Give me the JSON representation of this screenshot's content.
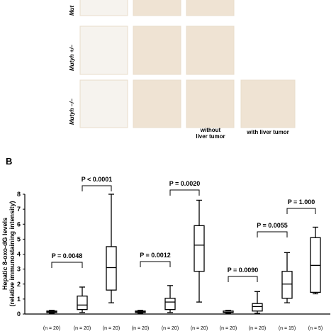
{
  "panel_a": {
    "row_labels": [
      "Mut",
      "Mutyh +/–",
      "Mutyh –/–"
    ],
    "column_labels": [
      "without",
      "liver tumor",
      "with liver tumor"
    ]
  },
  "chart_data": {
    "type": "box",
    "panel_label": "B",
    "ylabel": [
      "Hepatic 8-oxo-dG levels",
      "(relative immunostaining intensity)"
    ],
    "categories": [
      "(n = 20)",
      "(n = 20)",
      "(n = 20)",
      "(n = 20)",
      "(n = 20)",
      "(n = 20)",
      "(n = 20)",
      "(n = 20)",
      "(n = 15)",
      "(n = 5)"
    ],
    "boxes": [
      {
        "min": 0.05,
        "q1": 0.1,
        "median": 0.15,
        "q3": 0.2,
        "max": 0.25
      },
      {
        "min": 0.1,
        "q1": 0.3,
        "median": 0.6,
        "q3": 1.2,
        "max": 1.8
      },
      {
        "min": 0.75,
        "q1": 1.6,
        "median": 3.1,
        "q3": 4.5,
        "max": 8
      },
      {
        "min": 0.05,
        "q1": 0.1,
        "median": 0.15,
        "q3": 0.2,
        "max": 0.25
      },
      {
        "min": 0.1,
        "q1": 0.3,
        "median": 0.8,
        "q3": 1.05,
        "max": 1.9
      },
      {
        "min": 0.8,
        "q1": 2.85,
        "median": 4.6,
        "q3": 5.9,
        "max": 7.6
      },
      {
        "min": 0.05,
        "q1": 0.1,
        "median": 0.12,
        "q3": 0.2,
        "max": 0.25
      },
      {
        "min": 0.05,
        "q1": 0.2,
        "median": 0.5,
        "q3": 0.7,
        "max": 1.5
      },
      {
        "min": 0.75,
        "q1": 1.05,
        "median": 2.0,
        "q3": 2.85,
        "max": 4.1
      },
      {
        "min": 1.35,
        "q1": 1.45,
        "median": 3.25,
        "q3": 5.1,
        "max": 5.8
      }
    ],
    "annotations": [
      "P = 0.0048",
      "P < 0.0001",
      "P = 0.0012",
      "P = 0.0020",
      "P = 0.0090",
      "P = 0.0055",
      "P = 1.000"
    ],
    "ylim": [
      0,
      8
    ],
    "yticks": [
      0,
      1,
      2,
      3,
      4,
      5,
      6,
      7,
      8
    ]
  }
}
